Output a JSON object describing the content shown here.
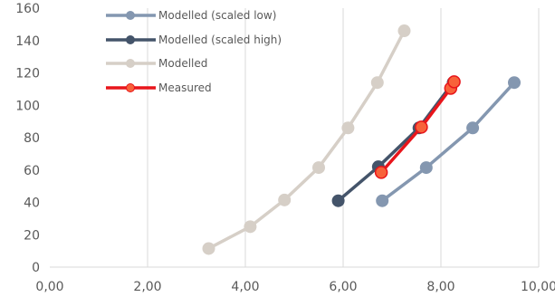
{
  "chart_data": {
    "type": "scatter",
    "xlim": [
      0,
      10
    ],
    "ylim": [
      0,
      160
    ],
    "x_ticks": [
      0,
      2,
      4,
      6,
      8,
      10
    ],
    "x_tick_labels": [
      "0,00",
      "2,00",
      "4,00",
      "6,00",
      "8,00",
      "10,00"
    ],
    "y_ticks": [
      0,
      20,
      40,
      60,
      80,
      100,
      120,
      140,
      160
    ],
    "y_tick_labels": [
      "0",
      "20",
      "40",
      "60",
      "80",
      "100",
      "120",
      "140",
      "160"
    ],
    "grid": "vertical",
    "legend_position": "top-left",
    "series": [
      {
        "name": "Modelled (scaled low)",
        "color": "#8497B0",
        "x": [
          6.8,
          7.7,
          8.65,
          9.5
        ],
        "y": [
          41,
          61.5,
          86,
          114
        ]
      },
      {
        "name": "Modelled (scaled high)",
        "color": "#44546A",
        "x": [
          5.9,
          6.72,
          7.55,
          8.25
        ],
        "y": [
          41,
          62,
          86,
          114
        ]
      },
      {
        "name": "Modelled",
        "color": "#D6CFC7",
        "x": [
          3.25,
          4.1,
          4.8,
          5.5,
          6.1,
          6.7,
          7.25
        ],
        "y": [
          11.5,
          25,
          41.5,
          61.5,
          86,
          114,
          146
        ]
      },
      {
        "name": "Measured",
        "color": "#E8151B",
        "marker_fill": "#F8623A",
        "x": [
          6.78,
          7.6,
          8.2,
          8.27
        ],
        "y": [
          58.5,
          86.5,
          110.5,
          114.5
        ]
      }
    ]
  }
}
